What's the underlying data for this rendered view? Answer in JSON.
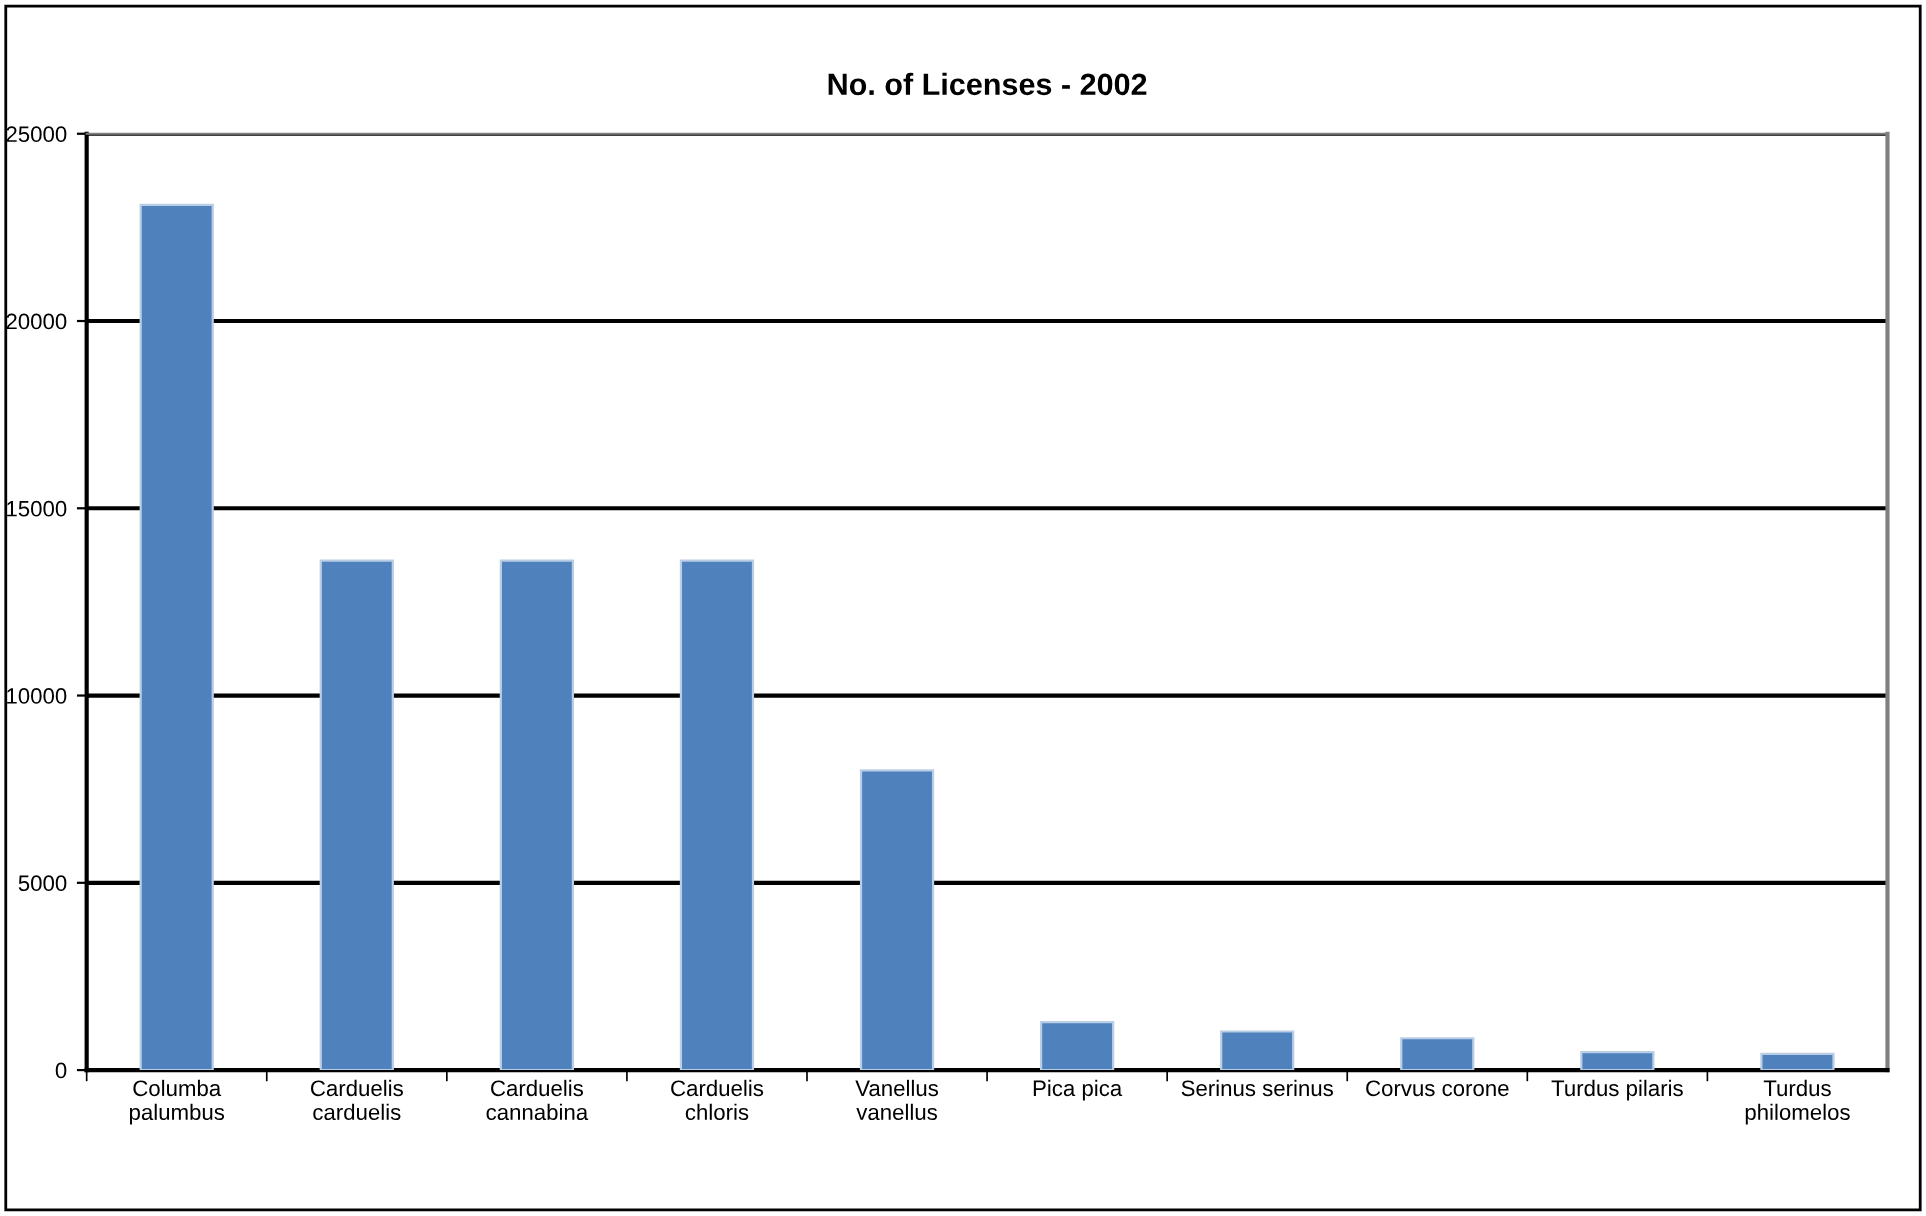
{
  "chart_data": {
    "type": "bar",
    "title": "No. of Licenses - 2002",
    "categories": [
      "Columba\npalumbus",
      "Carduelis\ncarduelis",
      "Carduelis\ncannabina",
      "Carduelis\nchloris",
      "Vanellus\nvanellus",
      "Pica pica",
      "Serinus serinus",
      "Corvus corone",
      "Turdus pilaris",
      "Turdus\nphilomelos"
    ],
    "values": [
      23100,
      13600,
      13600,
      13600,
      8000,
      1280,
      1030,
      850,
      480,
      430
    ],
    "color": "#4f81bd",
    "ylim": [
      0,
      25000
    ],
    "yticks": [
      0,
      5000,
      10000,
      15000,
      20000,
      25000
    ],
    "grid": "y",
    "legend": false
  }
}
